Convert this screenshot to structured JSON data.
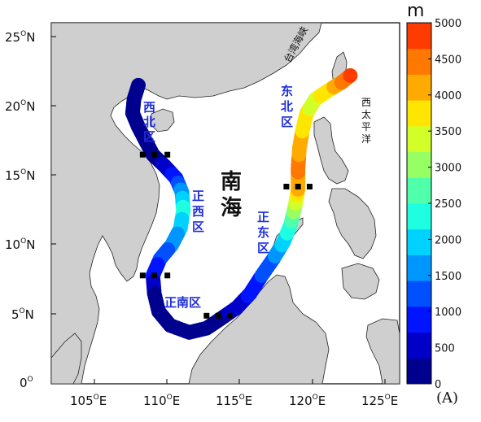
{
  "map": {
    "lat_ticks": [
      "25",
      "20",
      "15",
      "10",
      "5",
      "0"
    ],
    "lat_unit": "O",
    "lat_hemi": "N",
    "lon_ticks": [
      "105",
      "110",
      "115",
      "120",
      "125"
    ],
    "lon_unit": "O",
    "lon_hemi": "E",
    "sea_label_1": "南",
    "sea_label_2": "海",
    "regions": {
      "northwest": [
        "西",
        "北",
        "区"
      ],
      "west": [
        "正",
        "西",
        "区"
      ],
      "east": [
        "正",
        "东",
        "区"
      ],
      "northeast": [
        "东",
        "北",
        "区"
      ],
      "south": "正南区"
    },
    "strait_label": "台湾海峡",
    "pacific_label": [
      "西",
      "太",
      "平",
      "洋"
    ]
  },
  "colorbar": {
    "unit": "m",
    "ticks": [
      "5000",
      "4500",
      "4000",
      "3500",
      "3000",
      "2500",
      "2000",
      "1500",
      "1000",
      "500",
      "0"
    ],
    "colors": [
      "#00008f",
      "#0000c8",
      "#0014ff",
      "#0050ff",
      "#0096ff",
      "#00d2ff",
      "#1effe1",
      "#50ffaa",
      "#96ff64",
      "#d2ff28",
      "#ffe600",
      "#ffaa00",
      "#ff7800",
      "#ff3c00"
    ],
    "min": 0,
    "max": 5000
  },
  "panel_label": "(A)",
  "chart_data": {
    "type": "scatter",
    "x_range": [
      102,
      126
    ],
    "y_range": [
      0,
      26
    ],
    "track": [
      {
        "lon": 108.0,
        "lat": 21.5,
        "depth": 50
      },
      {
        "lon": 107.7,
        "lat": 20.5,
        "depth": 60
      },
      {
        "lon": 107.6,
        "lat": 19.5,
        "depth": 70
      },
      {
        "lon": 108.0,
        "lat": 18.5,
        "depth": 80
      },
      {
        "lon": 108.5,
        "lat": 17.5,
        "depth": 100
      },
      {
        "lon": 109.0,
        "lat": 16.5,
        "depth": 200
      },
      {
        "lon": 109.8,
        "lat": 15.7,
        "depth": 400
      },
      {
        "lon": 110.6,
        "lat": 14.8,
        "depth": 900
      },
      {
        "lon": 111.0,
        "lat": 13.8,
        "depth": 1600
      },
      {
        "lon": 111.1,
        "lat": 12.5,
        "depth": 2300
      },
      {
        "lon": 110.9,
        "lat": 11.2,
        "depth": 1900
      },
      {
        "lon": 110.3,
        "lat": 10.0,
        "depth": 1500
      },
      {
        "lon": 109.5,
        "lat": 9.0,
        "depth": 1200
      },
      {
        "lon": 109.0,
        "lat": 7.8,
        "depth": 800
      },
      {
        "lon": 109.1,
        "lat": 6.5,
        "depth": 300
      },
      {
        "lon": 109.4,
        "lat": 5.2,
        "depth": 150
      },
      {
        "lon": 110.2,
        "lat": 4.2,
        "depth": 100
      },
      {
        "lon": 111.5,
        "lat": 3.7,
        "depth": 100
      },
      {
        "lon": 112.7,
        "lat": 4.0,
        "depth": 150
      },
      {
        "lon": 113.7,
        "lat": 4.7,
        "depth": 250
      },
      {
        "lon": 114.8,
        "lat": 5.5,
        "depth": 500
      },
      {
        "lon": 115.7,
        "lat": 6.5,
        "depth": 800
      },
      {
        "lon": 116.5,
        "lat": 7.8,
        "depth": 1100
      },
      {
        "lon": 117.3,
        "lat": 9.0,
        "depth": 1400
      },
      {
        "lon": 118.0,
        "lat": 10.2,
        "depth": 1900
      },
      {
        "lon": 118.5,
        "lat": 11.5,
        "depth": 2400
      },
      {
        "lon": 118.8,
        "lat": 12.8,
        "depth": 3100
      },
      {
        "lon": 119.0,
        "lat": 14.0,
        "depth": 4000
      },
      {
        "lon": 119.0,
        "lat": 15.5,
        "depth": 4400
      },
      {
        "lon": 119.1,
        "lat": 17.0,
        "depth": 4200
      },
      {
        "lon": 119.3,
        "lat": 18.2,
        "depth": 3900
      },
      {
        "lon": 119.6,
        "lat": 19.5,
        "depth": 3600
      },
      {
        "lon": 120.2,
        "lat": 20.5,
        "depth": 3500
      },
      {
        "lon": 121.2,
        "lat": 21.2,
        "depth": 3800
      },
      {
        "lon": 122.0,
        "lat": 21.7,
        "depth": 4300
      },
      {
        "lon": 122.6,
        "lat": 22.2,
        "depth": 4700
      }
    ],
    "section_markers": [
      {
        "lon": 108.3,
        "lat": 16.5
      },
      {
        "lon": 109.1,
        "lat": 16.5
      },
      {
        "lon": 110.0,
        "lat": 16.5
      },
      {
        "lon": 108.3,
        "lat": 7.8
      },
      {
        "lon": 109.1,
        "lat": 7.8
      },
      {
        "lon": 110.0,
        "lat": 7.8
      },
      {
        "lon": 112.7,
        "lat": 4.9
      },
      {
        "lon": 113.5,
        "lat": 4.9
      },
      {
        "lon": 114.3,
        "lat": 4.9
      },
      {
        "lon": 118.2,
        "lat": 14.2
      },
      {
        "lon": 119.0,
        "lat": 14.2
      },
      {
        "lon": 119.8,
        "lat": 14.2
      }
    ]
  }
}
